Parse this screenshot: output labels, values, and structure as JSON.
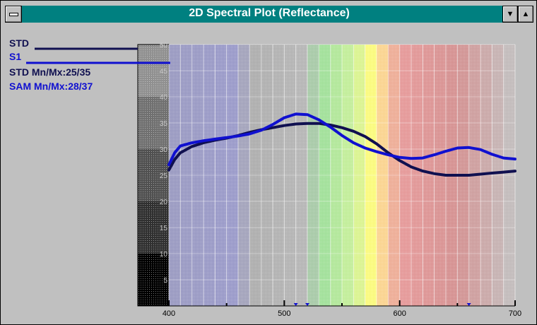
{
  "window": {
    "title": "2D Spectral Plot (Reflectance)",
    "minimize_glyph": "▼",
    "maximize_glyph": "▲"
  },
  "legend": {
    "std_label": "STD",
    "s1_label": "S1",
    "std_minmax": "STD Mn/Mx:25/35",
    "sam_minmax": "SAM Mn/Mx:28/37",
    "std_color": "#101050",
    "sam_color": "#1010d0"
  },
  "chart_data": {
    "type": "line",
    "title": "2D Spectral Plot (Reflectance)",
    "xlabel": "",
    "ylabel": "",
    "xlim": [
      400,
      700
    ],
    "ylim": [
      0,
      50
    ],
    "x_ticks": [
      "400",
      "500",
      "600",
      "700"
    ],
    "y_ticks": [
      "5",
      "10",
      "15",
      "20",
      "25",
      "30",
      "35",
      "40",
      "45",
      "50"
    ],
    "series": [
      {
        "name": "STD",
        "color": "#101050",
        "points": [
          [
            400,
            26
          ],
          [
            405,
            28
          ],
          [
            410,
            29.3
          ],
          [
            420,
            30.5
          ],
          [
            430,
            31.2
          ],
          [
            440,
            31.7
          ],
          [
            450,
            32.1
          ],
          [
            460,
            32.6
          ],
          [
            470,
            33.2
          ],
          [
            480,
            33.7
          ],
          [
            490,
            34.1
          ],
          [
            500,
            34.5
          ],
          [
            510,
            34.8
          ],
          [
            520,
            34.9
          ],
          [
            530,
            34.9
          ],
          [
            540,
            34.6
          ],
          [
            550,
            34.1
          ],
          [
            560,
            33.4
          ],
          [
            570,
            32.4
          ],
          [
            580,
            31.0
          ],
          [
            590,
            29.3
          ],
          [
            600,
            27.8
          ],
          [
            610,
            26.6
          ],
          [
            620,
            25.8
          ],
          [
            630,
            25.3
          ],
          [
            640,
            25.0
          ],
          [
            650,
            25.0
          ],
          [
            660,
            25.0
          ],
          [
            670,
            25.2
          ],
          [
            680,
            25.4
          ],
          [
            690,
            25.6
          ],
          [
            700,
            25.8
          ]
        ]
      },
      {
        "name": "S1",
        "color": "#1010d0",
        "points": [
          [
            400,
            27
          ],
          [
            405,
            29.3
          ],
          [
            410,
            30.6
          ],
          [
            420,
            31.2
          ],
          [
            430,
            31.6
          ],
          [
            440,
            31.9
          ],
          [
            450,
            32.2
          ],
          [
            460,
            32.5
          ],
          [
            470,
            32.9
          ],
          [
            480,
            33.6
          ],
          [
            490,
            34.7
          ],
          [
            500,
            36.0
          ],
          [
            510,
            36.7
          ],
          [
            520,
            36.6
          ],
          [
            530,
            35.6
          ],
          [
            540,
            34.2
          ],
          [
            550,
            32.6
          ],
          [
            560,
            31.2
          ],
          [
            570,
            30.2
          ],
          [
            580,
            29.5
          ],
          [
            590,
            28.9
          ],
          [
            600,
            28.4
          ],
          [
            610,
            28.2
          ],
          [
            620,
            28.3
          ],
          [
            630,
            28.9
          ],
          [
            640,
            29.6
          ],
          [
            650,
            30.2
          ],
          [
            660,
            30.3
          ],
          [
            670,
            29.9
          ],
          [
            680,
            29.0
          ],
          [
            690,
            28.3
          ],
          [
            700,
            28.1
          ]
        ]
      }
    ],
    "marker_points_x": [
      510,
      520,
      660
    ],
    "grid": true,
    "background_spectrum": true
  }
}
